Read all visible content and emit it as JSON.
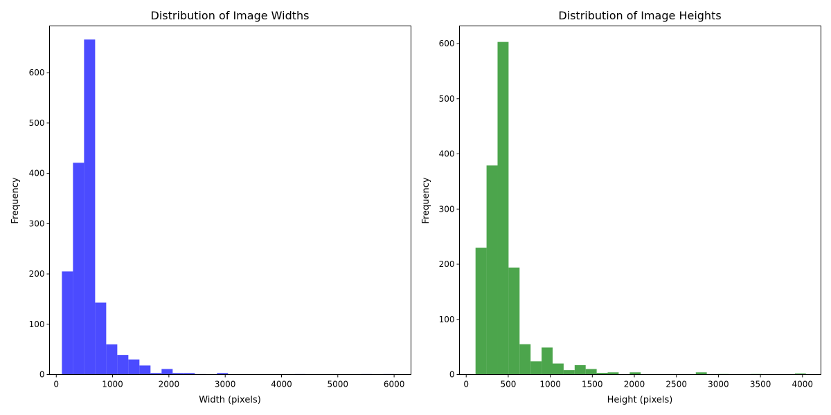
{
  "chart_data": [
    {
      "type": "bar",
      "title": "Distribution of Image Widths",
      "xlabel": "Width (pixels)",
      "ylabel": "Frequency",
      "xlim": [
        -120,
        6300
      ],
      "ylim": [
        0,
        693
      ],
      "xticks": [
        0,
        1000,
        2000,
        3000,
        4000,
        5000,
        6000
      ],
      "yticks": [
        0,
        100,
        200,
        300,
        400,
        500,
        600
      ],
      "xtick_labels": [
        "0",
        "1000",
        "2000",
        "3000",
        "4000",
        "5000",
        "6000"
      ],
      "ytick_labels": [
        "0",
        "100",
        "200",
        "300",
        "400",
        "500",
        "600"
      ],
      "bin_start": 100,
      "bin_width": 196.7,
      "values": [
        205,
        421,
        666,
        143,
        60,
        39,
        30,
        18,
        3,
        11,
        3,
        3,
        1,
        0,
        3,
        0,
        0,
        0,
        0,
        0,
        0,
        1,
        0,
        0,
        0,
        0,
        0,
        1,
        0,
        1
      ],
      "color": "#4b4bff",
      "grid": false
    },
    {
      "type": "bar",
      "title": "Distribution of Image Heights",
      "xlabel": "Height (pixels)",
      "ylabel": "Frequency",
      "xlim": [
        -80,
        4220
      ],
      "ylim": [
        0,
        632
      ],
      "xticks": [
        0,
        500,
        1000,
        1500,
        2000,
        2500,
        3000,
        3500,
        4000
      ],
      "yticks": [
        0,
        100,
        200,
        300,
        400,
        500,
        600
      ],
      "xtick_labels": [
        "0",
        "500",
        "1000",
        "1500",
        "2000",
        "2500",
        "3000",
        "3500",
        "4000"
      ],
      "ytick_labels": [
        "0",
        "100",
        "200",
        "300",
        "400",
        "500",
        "600"
      ],
      "bin_start": 111,
      "bin_width": 131,
      "values": [
        230,
        379,
        603,
        194,
        55,
        24,
        49,
        20,
        8,
        17,
        10,
        3,
        4,
        0,
        4,
        0,
        0,
        0,
        0,
        0,
        4,
        0,
        1,
        0,
        0,
        1,
        0,
        0,
        0,
        2
      ],
      "color": "#4ca54c",
      "grid": false
    }
  ]
}
